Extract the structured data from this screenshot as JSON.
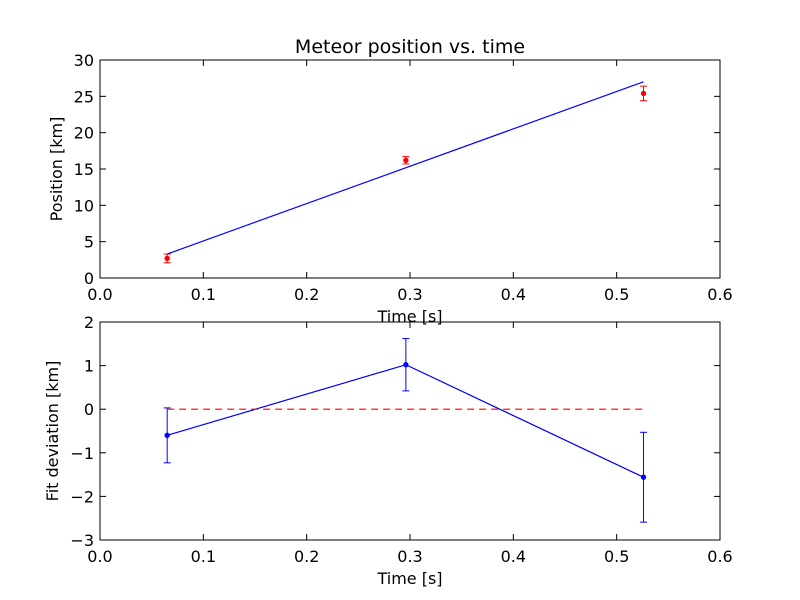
{
  "chart_data": [
    {
      "type": "scatter",
      "title": "Meteor position vs. time",
      "xlabel": "Time [s]",
      "ylabel": "Position [km]",
      "xlim": [
        0.0,
        0.6
      ],
      "ylim": [
        0,
        30
      ],
      "xticks": [
        "0.0",
        "0.1",
        "0.2",
        "0.3",
        "0.4",
        "0.5",
        "0.6"
      ],
      "yticks": [
        "0",
        "5",
        "10",
        "15",
        "20",
        "25",
        "30"
      ],
      "grid": false,
      "series": [
        {
          "kind": "errorbar",
          "color": "#ff0000",
          "points": [
            {
              "x": 0.065,
              "y": 2.7,
              "err": 0.6
            },
            {
              "x": 0.296,
              "y": 16.2,
              "err": 0.5
            },
            {
              "x": 0.526,
              "y": 25.4,
              "err": 1.0
            }
          ]
        },
        {
          "kind": "line",
          "color": "#0000ff",
          "points": [
            {
              "x": 0.065,
              "y": 3.3
            },
            {
              "x": 0.526,
              "y": 27.0
            }
          ]
        }
      ]
    },
    {
      "type": "line",
      "title": "",
      "xlabel": "Time [s]",
      "ylabel": "Fit deviation [km]",
      "xlim": [
        0.0,
        0.6
      ],
      "ylim": [
        -3,
        2
      ],
      "xticks": [
        "0.0",
        "0.1",
        "0.2",
        "0.3",
        "0.4",
        "0.5",
        "0.6"
      ],
      "yticks": [
        "−3",
        "−2",
        "−1",
        "0",
        "1",
        "2"
      ],
      "grid": false,
      "series": [
        {
          "kind": "errorbar-line",
          "color": "#0000ff",
          "points": [
            {
              "x": 0.065,
              "y": -0.6,
              "err": 0.63
            },
            {
              "x": 0.296,
              "y": 1.02,
              "err": 0.6
            },
            {
              "x": 0.526,
              "y": -1.56,
              "err": 1.03
            }
          ]
        },
        {
          "kind": "dashed-line",
          "color": "#ff0000",
          "points": [
            {
              "x": 0.065,
              "y": 0
            },
            {
              "x": 0.526,
              "y": 0
            }
          ]
        }
      ]
    }
  ]
}
